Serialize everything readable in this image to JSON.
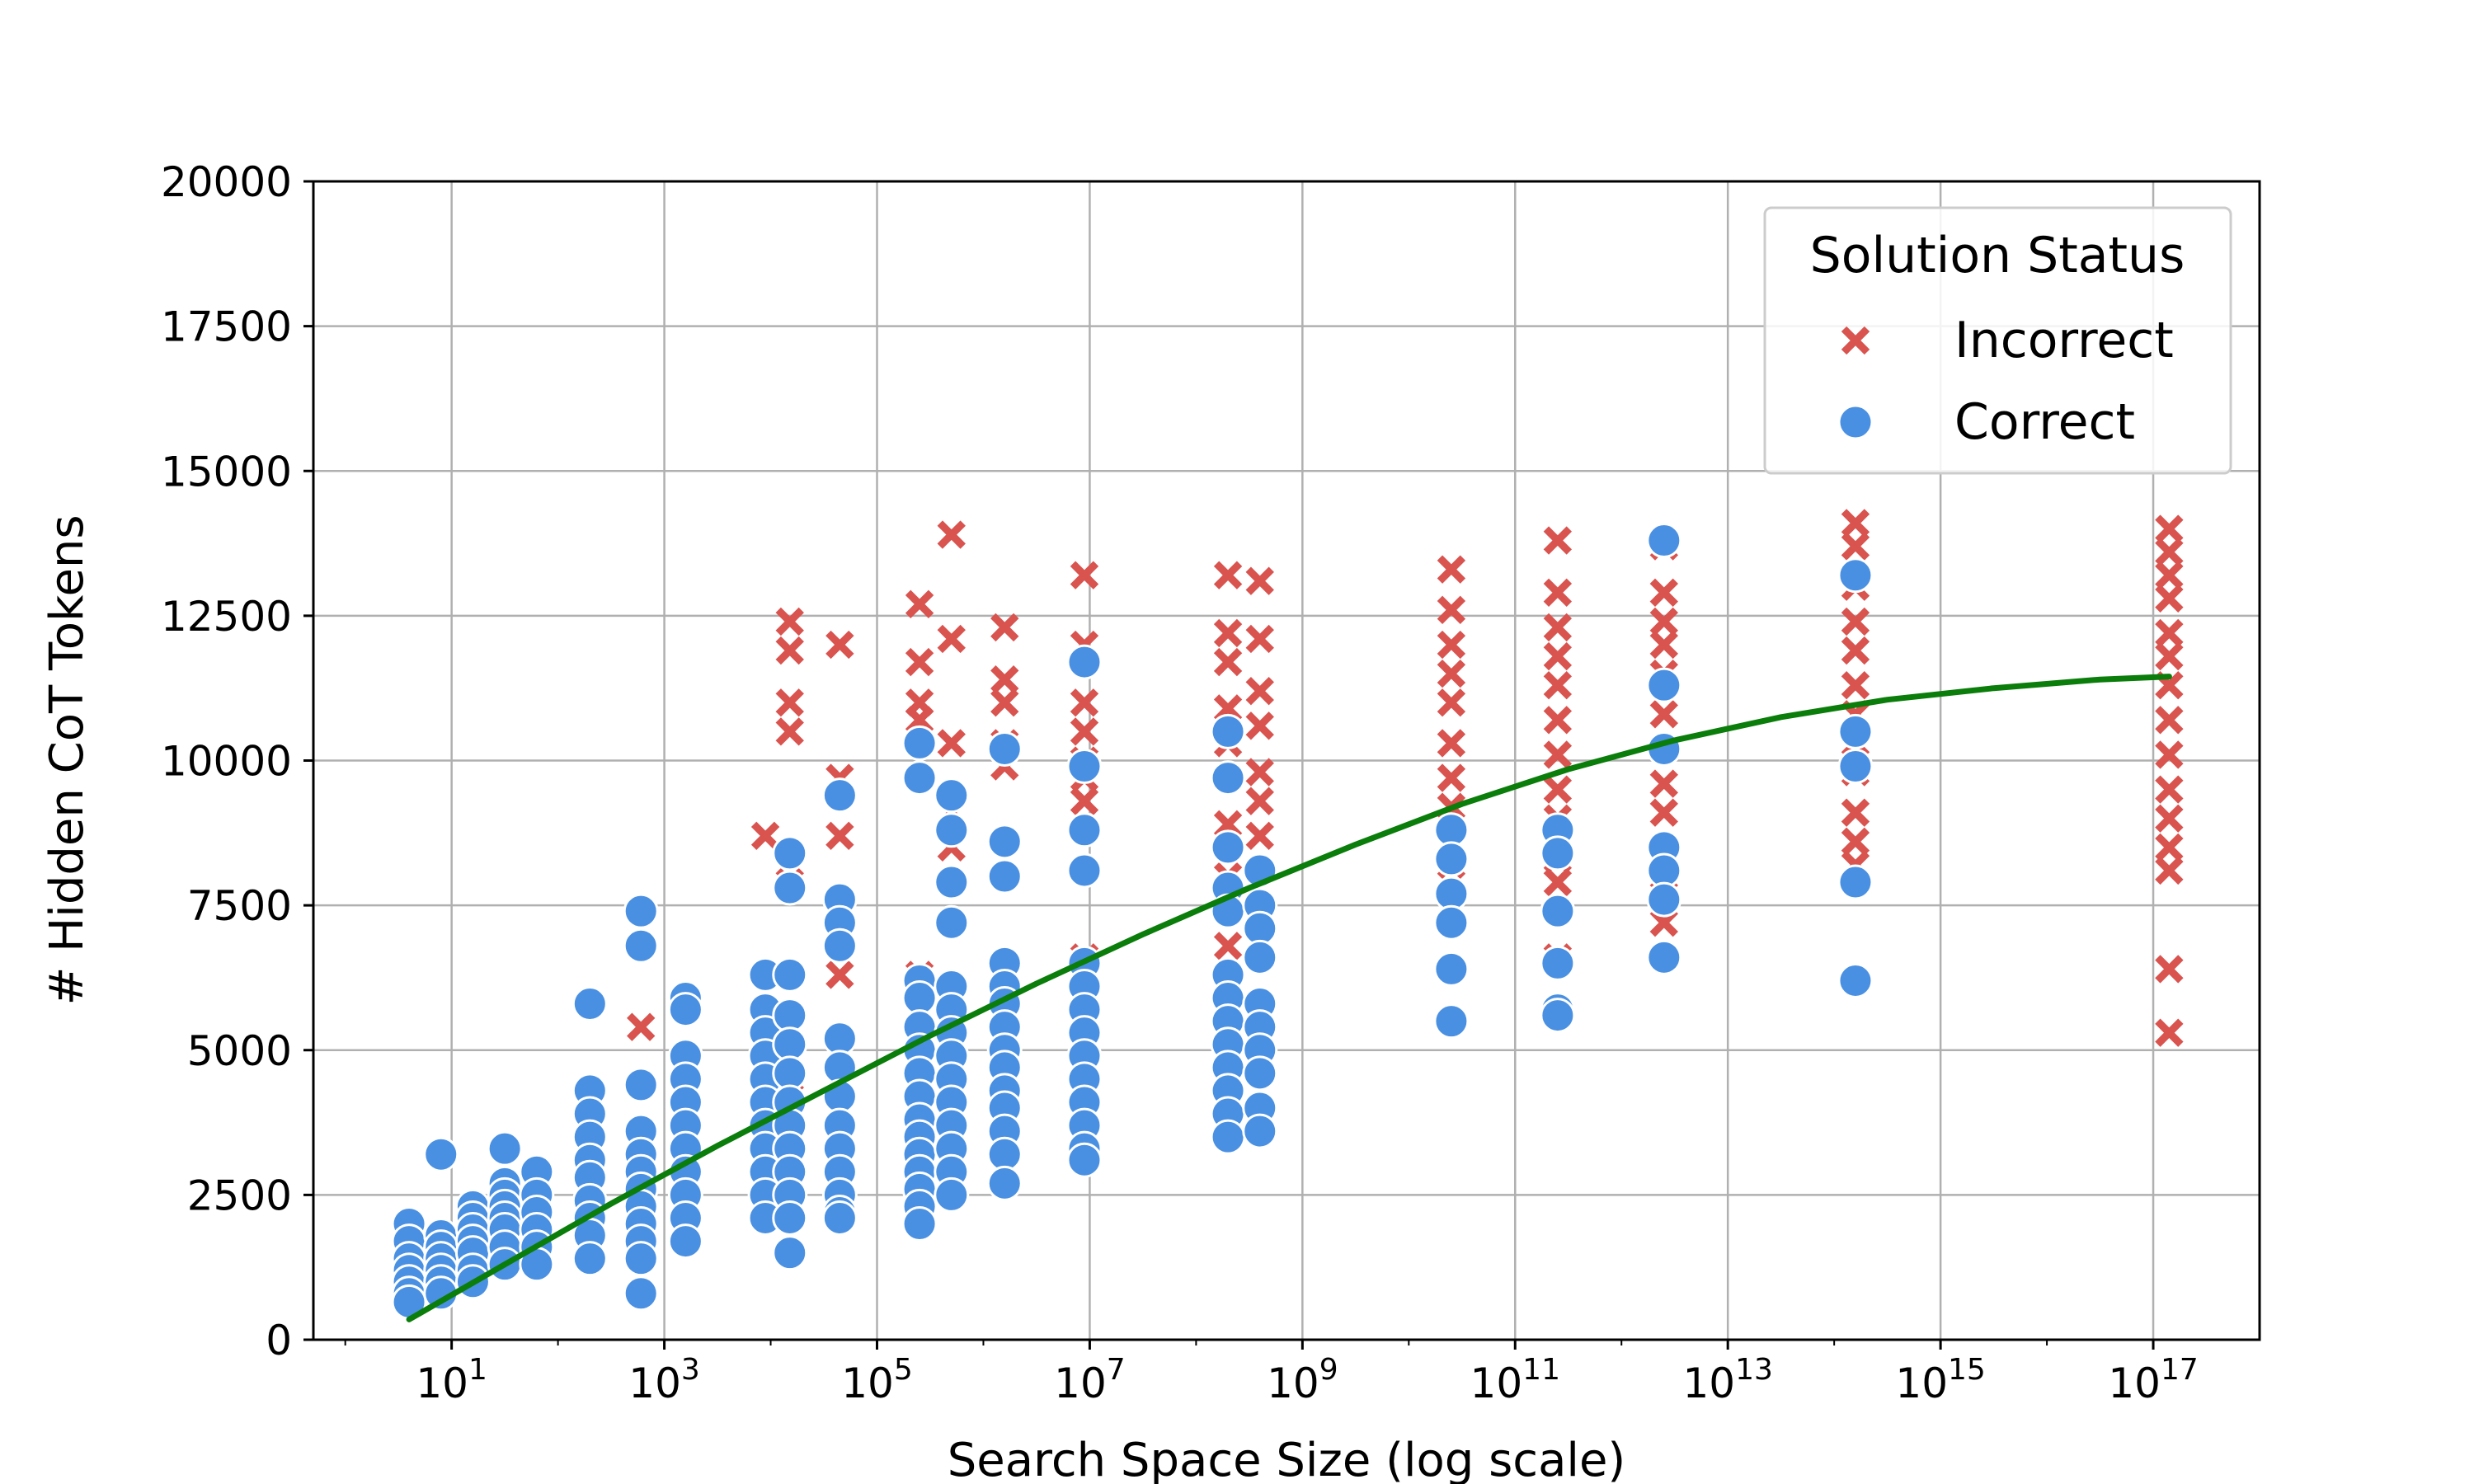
{
  "chart_data": {
    "type": "scatter",
    "xlabel": "Search Space Size (log scale)",
    "ylabel": "# Hidden CoT Tokens",
    "x_scale": "log",
    "x_exponent_range": [
      -0.3,
      18.0
    ],
    "ylim": [
      0,
      20000
    ],
    "y_ticks": [
      "0",
      "2500",
      "5000",
      "7500",
      "10000",
      "12500",
      "15000",
      "17500",
      "20000"
    ],
    "x_ticks": [
      {
        "base": "10",
        "exp": "1"
      },
      {
        "base": "10",
        "exp": "3"
      },
      {
        "base": "10",
        "exp": "5"
      },
      {
        "base": "10",
        "exp": "7"
      },
      {
        "base": "10",
        "exp": "9"
      },
      {
        "base": "10",
        "exp": "11"
      },
      {
        "base": "10",
        "exp": "13"
      },
      {
        "base": "10",
        "exp": "15"
      },
      {
        "base": "10",
        "exp": "17"
      }
    ],
    "grid": true,
    "legend": {
      "title": "Solution Status",
      "position": "top-right",
      "entries": [
        "Incorrect",
        "Correct"
      ]
    },
    "colors": {
      "incorrect": "#d9534f",
      "correct": "#4a90e2",
      "trend": "#0a7d0a"
    },
    "series": [
      {
        "name": "Incorrect",
        "marker": "x",
        "x_log10": [
          2.78,
          3.95,
          4.18,
          4.18,
          4.18,
          4.18,
          4.18,
          4.18,
          4.65,
          4.65,
          4.65,
          4.65,
          5.4,
          5.4,
          5.4,
          5.4,
          5.4,
          5.7,
          5.7,
          5.7,
          5.7,
          5.7,
          6.2,
          6.2,
          6.2,
          6.2,
          6.2,
          6.2,
          6.95,
          6.95,
          6.95,
          6.95,
          6.95,
          6.95,
          6.95,
          6.95,
          6.95,
          6.95,
          8.3,
          8.3,
          8.3,
          8.3,
          8.3,
          8.3,
          8.3,
          8.3,
          8.3,
          8.3,
          8.3,
          8.6,
          8.6,
          8.6,
          8.6,
          8.6,
          8.6,
          8.6,
          10.4,
          10.4,
          10.4,
          10.4,
          10.4,
          10.4,
          10.4,
          10.4,
          10.4,
          10.4,
          10.4,
          11.4,
          11.4,
          11.4,
          11.4,
          11.4,
          11.4,
          11.4,
          11.4,
          11.4,
          11.4,
          11.4,
          11.4,
          12.4,
          12.4,
          12.4,
          12.4,
          12.4,
          12.4,
          12.4,
          12.4,
          12.4,
          12.4,
          12.4,
          14.2,
          14.2,
          14.2,
          14.2,
          14.2,
          14.2,
          14.2,
          14.2,
          14.2,
          14.2,
          14.2,
          14.2,
          14.2,
          17.15,
          17.15,
          17.15,
          17.15,
          17.15,
          17.15,
          17.15,
          17.15,
          17.15,
          17.15,
          17.15,
          17.15,
          17.15,
          17.15,
          17.15
        ],
        "y": [
          5400,
          8700,
          12400,
          11900,
          11000,
          10500,
          7900,
          4200,
          12000,
          9700,
          8700,
          6300,
          12700,
          11700,
          11000,
          10700,
          6300,
          13900,
          12100,
          10300,
          9100,
          8500,
          12300,
          11400,
          11000,
          10300,
          9900,
          4300,
          13200,
          12000,
          11000,
          10500,
          10000,
          9700,
          9300,
          8800,
          6600,
          5200,
          13200,
          12200,
          11700,
          10900,
          10300,
          9700,
          8900,
          8000,
          6800,
          6100,
          4300,
          13100,
          12100,
          11200,
          10600,
          9800,
          9300,
          8700,
          13300,
          12600,
          12000,
          11500,
          11000,
          10300,
          9700,
          9200,
          8600,
          8200,
          7500,
          13800,
          12900,
          12300,
          11800,
          11300,
          10700,
          10100,
          9500,
          9000,
          8300,
          7900,
          6600,
          13700,
          12900,
          12400,
          12000,
          11500,
          10800,
          10200,
          9600,
          9100,
          8000,
          7200,
          14100,
          13700,
          13000,
          12400,
          11900,
          11300,
          10800,
          10300,
          9800,
          9100,
          8600,
          8200,
          7900,
          14000,
          13600,
          13200,
          12800,
          12200,
          11800,
          11300,
          10700,
          10100,
          9500,
          9000,
          8500,
          8100,
          6400,
          5300
        ]
      },
      {
        "name": "Correct",
        "marker": "circle",
        "x_log10": [
          0.6,
          0.6,
          0.6,
          0.6,
          0.6,
          0.6,
          0.6,
          0.9,
          0.9,
          0.9,
          0.9,
          0.9,
          0.9,
          0.9,
          1.2,
          1.2,
          1.2,
          1.2,
          1.2,
          1.2,
          1.2,
          1.5,
          1.5,
          1.5,
          1.5,
          1.5,
          1.5,
          1.5,
          1.5,
          1.8,
          1.8,
          1.8,
          1.8,
          1.8,
          1.8,
          2.3,
          2.3,
          2.3,
          2.3,
          2.3,
          2.3,
          2.3,
          2.3,
          2.3,
          2.3,
          2.78,
          2.78,
          2.78,
          2.78,
          2.78,
          2.78,
          2.78,
          2.78,
          2.78,
          2.78,
          2.78,
          2.78,
          3.2,
          3.2,
          3.2,
          3.2,
          3.2,
          3.2,
          3.2,
          3.2,
          3.2,
          3.2,
          3.2,
          3.95,
          3.95,
          3.95,
          3.95,
          3.95,
          3.95,
          3.95,
          3.95,
          3.95,
          3.95,
          3.95,
          4.18,
          4.18,
          4.18,
          4.18,
          4.18,
          4.18,
          4.18,
          4.18,
          4.18,
          4.18,
          4.18,
          4.18,
          4.18,
          4.65,
          4.65,
          4.65,
          4.65,
          4.65,
          4.65,
          4.65,
          4.65,
          4.65,
          4.65,
          4.65,
          4.65,
          4.65,
          5.4,
          5.4,
          5.4,
          5.4,
          5.4,
          5.4,
          5.4,
          5.4,
          5.4,
          5.4,
          5.4,
          5.4,
          5.4,
          5.4,
          5.4,
          5.7,
          5.7,
          5.7,
          5.7,
          5.7,
          5.7,
          5.7,
          5.7,
          5.7,
          5.7,
          5.7,
          5.7,
          5.7,
          5.7,
          6.2,
          6.2,
          6.2,
          6.2,
          6.2,
          6.2,
          6.2,
          6.2,
          6.2,
          6.2,
          6.2,
          6.2,
          6.2,
          6.2,
          6.95,
          6.95,
          6.95,
          6.95,
          6.95,
          6.95,
          6.95,
          6.95,
          6.95,
          6.95,
          6.95,
          6.95,
          6.95,
          6.95,
          8.3,
          8.3,
          8.3,
          8.3,
          8.3,
          8.3,
          8.3,
          8.3,
          8.3,
          8.3,
          8.3,
          8.3,
          8.3,
          8.6,
          8.6,
          8.6,
          8.6,
          8.6,
          8.6,
          8.6,
          8.6,
          8.6,
          8.6,
          10.4,
          10.4,
          10.4,
          10.4,
          10.4,
          10.4,
          11.4,
          11.4,
          11.4,
          11.4,
          11.4,
          11.4,
          12.4,
          12.4,
          12.4,
          12.4,
          12.4,
          12.4,
          12.4,
          14.2,
          14.2,
          14.2,
          14.2,
          14.2
        ],
        "y": [
          2000,
          1700,
          1400,
          1200,
          1000,
          800,
          650,
          3200,
          1800,
          1600,
          1400,
          1200,
          1000,
          800,
          2300,
          2100,
          1900,
          1700,
          1500,
          1200,
          1000,
          3300,
          2700,
          2500,
          2300,
          2100,
          1900,
          1600,
          1300,
          2900,
          2500,
          2200,
          1900,
          1600,
          1300,
          5800,
          4300,
          3900,
          3500,
          3100,
          2800,
          2400,
          2100,
          1800,
          1400,
          7400,
          6800,
          4400,
          3600,
          3200,
          2900,
          2600,
          2300,
          2000,
          1700,
          1400,
          800,
          5900,
          5700,
          4900,
          4500,
          4100,
          3700,
          3300,
          2900,
          2500,
          2100,
          1700,
          6300,
          5700,
          5300,
          4900,
          4500,
          4100,
          3700,
          3300,
          2900,
          2500,
          2100,
          8400,
          7800,
          6300,
          5600,
          5100,
          4600,
          4100,
          3700,
          3300,
          2900,
          2500,
          2100,
          1500,
          9400,
          7600,
          7200,
          6800,
          5200,
          4700,
          4200,
          3700,
          3300,
          2900,
          2500,
          2200,
          2100,
          10300,
          9700,
          6200,
          5900,
          5400,
          5000,
          4600,
          4200,
          3800,
          3500,
          3200,
          2900,
          2600,
          2300,
          2000,
          9400,
          8800,
          7900,
          7200,
          6100,
          5700,
          5300,
          4900,
          4500,
          4100,
          3700,
          3300,
          2900,
          2500,
          10200,
          8600,
          8000,
          6500,
          6100,
          5800,
          5400,
          5000,
          4700,
          4300,
          4000,
          3600,
          3200,
          2700,
          11700,
          9900,
          8800,
          8100,
          6500,
          6100,
          5700,
          5300,
          4900,
          4500,
          4100,
          3700,
          3300,
          3100,
          10500,
          9700,
          8500,
          7800,
          7400,
          6300,
          5900,
          5500,
          5100,
          4700,
          4300,
          3900,
          3500,
          8100,
          7500,
          7100,
          6600,
          5800,
          5400,
          5000,
          4600,
          4000,
          3600,
          8800,
          8300,
          7700,
          7200,
          6400,
          5500,
          8800,
          8400,
          7400,
          6500,
          5700,
          5600,
          13800,
          11300,
          10200,
          8500,
          8100,
          7600,
          6600,
          13200,
          10500,
          9900,
          7900,
          6200
        ]
      },
      {
        "name": "",
        "marker": "line",
        "x_log10": [
          0.6,
          1.5,
          2.5,
          3.5,
          4.5,
          5.5,
          6.5,
          7.5,
          8.5,
          9.5,
          10.5,
          11.5,
          12.5,
          13.5,
          14.5,
          15.5,
          16.5,
          17.15
        ],
        "y": [
          350,
          1300,
          2350,
          3350,
          4300,
          5250,
          6150,
          7000,
          7800,
          8550,
          9250,
          9850,
          10350,
          10750,
          11050,
          11250,
          11400,
          11450
        ]
      }
    ]
  }
}
